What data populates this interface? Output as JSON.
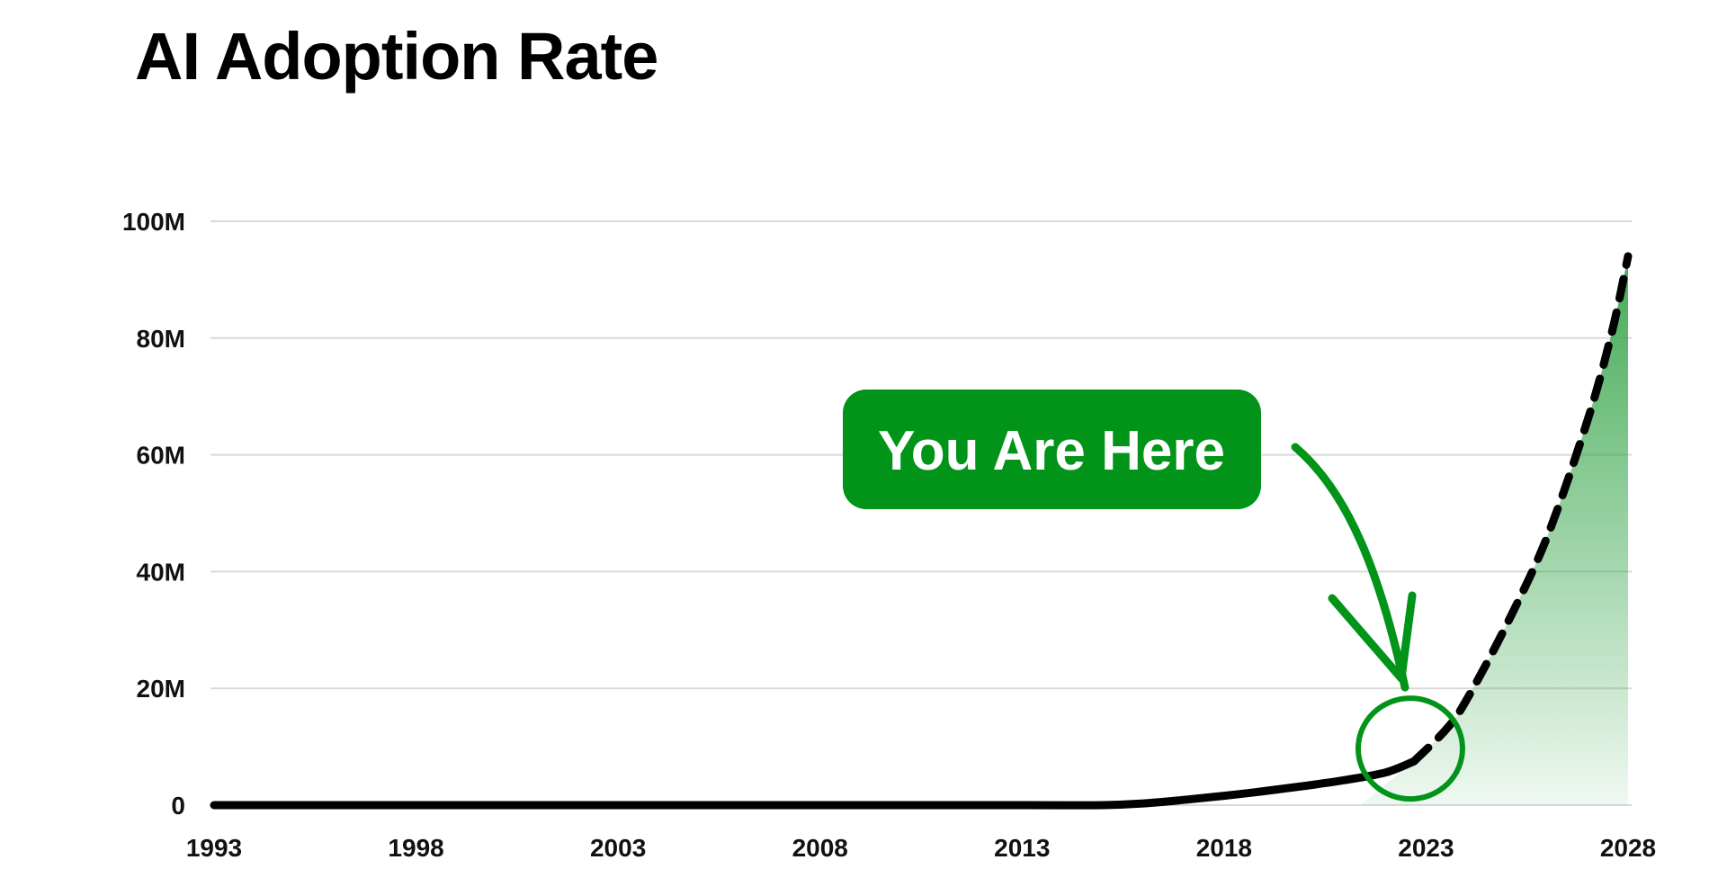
{
  "chart_data": {
    "type": "area",
    "title": "AI Adoption Rate",
    "xlabel": "",
    "ylabel": "",
    "xlim": [
      1993,
      2028
    ],
    "ylim": [
      0,
      100
    ],
    "x_ticks": [
      "1993",
      "1998",
      "2003",
      "2008",
      "2013",
      "2018",
      "2023",
      "2028"
    ],
    "y_ticks": [
      "0",
      "20M",
      "40M",
      "60M",
      "80M",
      "100M"
    ],
    "grid": true,
    "series": [
      {
        "style": "solid",
        "x": [
          1993,
          1998,
          2003,
          2008,
          2013,
          2015,
          2016,
          2017,
          2018,
          2019,
          2020,
          2021,
          2022,
          2022.7
        ],
        "y": [
          0,
          0,
          0,
          0,
          0,
          0,
          0.3,
          0.9,
          1.6,
          2.4,
          3.3,
          4.3,
          5.6,
          7.5
        ]
      },
      {
        "style": "dashed",
        "x": [
          2022.7,
          2023.5,
          2024,
          2025,
          2026,
          2027,
          2027.6,
          2028
        ],
        "y": [
          7.5,
          13,
          18,
          31,
          46,
          66,
          81,
          94
        ]
      }
    ],
    "annotations": [
      {
        "text": "You Are Here",
        "x": 2022.7,
        "y": 10
      }
    ],
    "colors": {
      "line": "#000000",
      "accent": "#019419",
      "fill": "#3aa74e",
      "grid": "#d9d9d9"
    }
  }
}
